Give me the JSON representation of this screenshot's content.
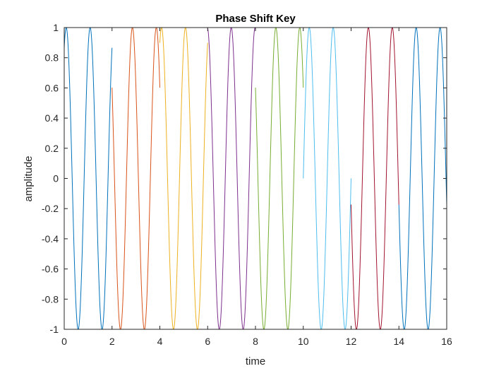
{
  "chart_data": {
    "type": "line",
    "title": "Phase Shift Key",
    "xlabel": "time",
    "ylabel": "amplitude",
    "xlim": [
      0,
      16
    ],
    "ylim": [
      -1,
      1
    ],
    "x_ticks": [
      "0",
      "2",
      "4",
      "6",
      "8",
      "10",
      "12",
      "14",
      "16"
    ],
    "y_ticks": [
      "1",
      "0.8",
      "0.6",
      "0.4",
      "0.2",
      "0",
      "-0.2",
      "-0.4",
      "-0.6",
      "-0.8",
      "-1"
    ],
    "grid": false,
    "legend": "none",
    "carrier_frequency": 1,
    "amplitude": 1,
    "series": [
      {
        "x_range": [
          0,
          2
        ],
        "phase_deg": 60,
        "color": "#0072BD"
      },
      {
        "x_range": [
          2,
          4
        ],
        "phase_deg": 143,
        "color": "#D95319"
      },
      {
        "x_range": [
          4,
          6
        ],
        "phase_deg": 64,
        "color": "#EDB120"
      },
      {
        "x_range": [
          6,
          8
        ],
        "phase_deg": 95,
        "color": "#7E2F8E"
      },
      {
        "x_range": [
          8,
          10
        ],
        "phase_deg": 143,
        "color": "#77AC30"
      },
      {
        "x_range": [
          10,
          12
        ],
        "phase_deg": 0,
        "color": "#4DBEEE"
      },
      {
        "x_range": [
          12,
          14
        ],
        "phase_deg": 190,
        "color": "#A2142F"
      },
      {
        "x_range": [
          14,
          16
        ],
        "phase_deg": 190,
        "color": "#0072BD"
      }
    ]
  }
}
